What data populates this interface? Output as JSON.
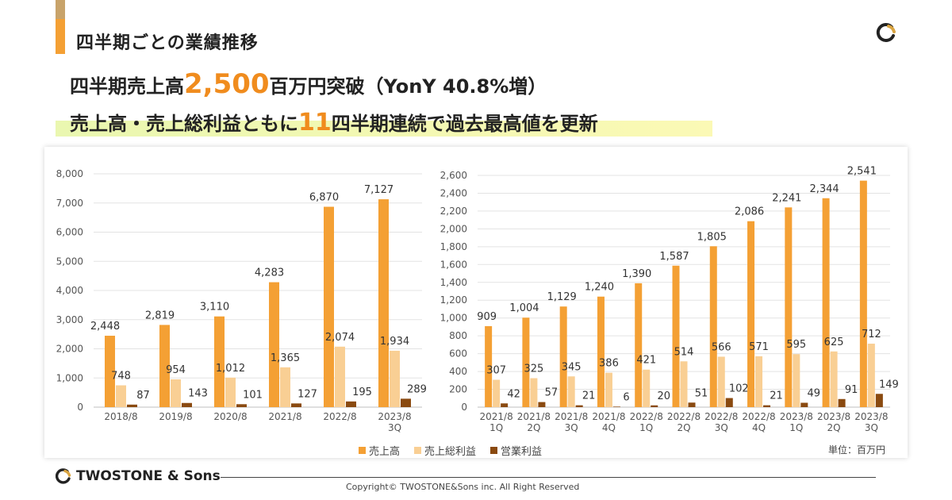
{
  "header": {
    "section_title": "四半期ごとの業績推移"
  },
  "headline": {
    "line1_pre": "四半期売上高",
    "line1_big": "2,500",
    "line1_post": "百万円突破（YonY 40.8%増）",
    "line2_pre": "売上高・売上総利益ともに",
    "line2_big": "11",
    "line2_post": "四半期連続で過去最高値を更新"
  },
  "colors": {
    "sales": "#f4a034",
    "gross_profit": "#f9cf94",
    "operating_profit": "#8a4a10",
    "accent": "#f08c1e"
  },
  "chart_data": [
    {
      "type": "bar",
      "categories": [
        "2018/8",
        "2019/8",
        "2020/8",
        "2021/8",
        "2022/8",
        "2023/8\n3Q"
      ],
      "series": [
        {
          "name": "売上高",
          "values": [
            2448,
            2819,
            3110,
            4283,
            6870,
            7127
          ]
        },
        {
          "name": "売上総利益",
          "values": [
            748,
            954,
            1012,
            1365,
            2074,
            1934
          ]
        },
        {
          "name": "営業利益",
          "values": [
            87,
            143,
            101,
            127,
            195,
            289
          ]
        }
      ],
      "ylim": [
        0,
        8000
      ],
      "yticks": [
        0,
        1000,
        2000,
        3000,
        4000,
        5000,
        6000,
        7000,
        8000
      ],
      "grid": true
    },
    {
      "type": "bar",
      "categories": [
        "2021/8\n1Q",
        "2021/8\n2Q",
        "2021/8\n3Q",
        "2021/8\n4Q",
        "2022/8\n1Q",
        "2022/8\n2Q",
        "2022/8\n3Q",
        "2022/8\n4Q",
        "2023/8\n1Q",
        "2023/8\n2Q",
        "2023/8\n3Q"
      ],
      "series": [
        {
          "name": "売上高",
          "values": [
            909,
            1004,
            1129,
            1240,
            1390,
            1587,
            1805,
            2086,
            2241,
            2344,
            2541
          ]
        },
        {
          "name": "売上総利益",
          "values": [
            307,
            325,
            345,
            386,
            421,
            514,
            566,
            571,
            595,
            625,
            712
          ]
        },
        {
          "name": "営業利益",
          "values": [
            42,
            57,
            21,
            6,
            20,
            51,
            102,
            21,
            49,
            91,
            149
          ]
        }
      ],
      "ylim": [
        0,
        2600
      ],
      "yticks": [
        0,
        200,
        400,
        600,
        800,
        1000,
        1200,
        1400,
        1600,
        1800,
        2000,
        2200,
        2400,
        2600
      ],
      "grid": true
    }
  ],
  "legend": {
    "items": [
      "売上高",
      "売上総利益",
      "営業利益"
    ]
  },
  "unit": "単位：百万円",
  "footer": {
    "brand": "TWOSTONE & Sons",
    "copyright": "Copyright© TWOSTONE&Sons inc. All Right Reserved"
  }
}
